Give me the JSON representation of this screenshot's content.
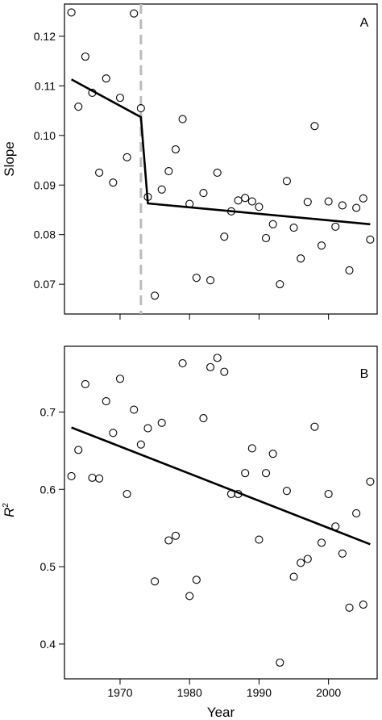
{
  "chart_data": [
    {
      "type": "scatter",
      "panel_label": "A",
      "ylabel": "Slope",
      "xlabel": "",
      "xlim": [
        1962,
        2007
      ],
      "ylim": [
        0.064,
        0.1265
      ],
      "xticks": [
        1970,
        1980,
        1990,
        2000
      ],
      "yticks": [
        0.07,
        0.08,
        0.09,
        0.1,
        0.11,
        0.12
      ],
      "ytick_labels": [
        "0.07",
        "0.08",
        "0.09",
        "0.10",
        "0.11",
        "0.12"
      ],
      "xtick_labels": [
        "",
        "",
        "",
        ""
      ],
      "series": [
        {
          "type": "scatter",
          "x": [
            1963,
            1964,
            1965,
            1966,
            1967,
            1968,
            1969,
            1970,
            1971,
            1972,
            1973,
            1974,
            1975,
            1976,
            1977,
            1978,
            1979,
            1980,
            1981,
            1982,
            1983,
            1984,
            1985,
            1986,
            1987,
            1988,
            1989,
            1990,
            1991,
            1992,
            1993,
            1994,
            1995,
            1996,
            1997,
            1998,
            1999,
            2000,
            2001,
            2002,
            2003,
            2004,
            2005,
            2006
          ],
          "y": [
            0.1248,
            0.1058,
            0.1159,
            0.1086,
            0.0925,
            0.1115,
            0.0905,
            0.1076,
            0.0956,
            0.1246,
            0.1055,
            0.0876,
            0.0677,
            0.0891,
            0.0928,
            0.0972,
            0.1033,
            0.0862,
            0.0713,
            0.0884,
            0.0708,
            0.0925,
            0.0796,
            0.0847,
            0.0869,
            0.0874,
            0.0867,
            0.0856,
            0.0793,
            0.0821,
            0.07,
            0.0908,
            0.0814,
            0.0752,
            0.0866,
            0.1019,
            0.0778,
            0.0867,
            0.0816,
            0.0859,
            0.0728,
            0.0854,
            0.0873,
            0.079
          ]
        },
        {
          "type": "line",
          "x": [
            1963,
            1973,
            1974,
            2006
          ],
          "y": [
            0.1113,
            0.1037,
            0.0863,
            0.0821
          ]
        }
      ],
      "vline": {
        "x": 1973,
        "color": "#bbbbbb",
        "dashed": true
      }
    },
    {
      "type": "scatter",
      "panel_label": "B",
      "ylabel": "R",
      "ylabel_sup": "2",
      "xlabel": "Year",
      "xlim": [
        1962,
        2007
      ],
      "ylim": [
        0.355,
        0.785
      ],
      "xticks": [
        1970,
        1980,
        1990,
        2000
      ],
      "xtick_labels": [
        "1970",
        "1980",
        "1990",
        "2000"
      ],
      "yticks": [
        0.4,
        0.5,
        0.6,
        0.7
      ],
      "ytick_labels": [
        "0.4",
        "0.5",
        "0.6",
        "0.7"
      ],
      "series": [
        {
          "type": "scatter",
          "x": [
            1963,
            1964,
            1965,
            1966,
            1967,
            1968,
            1969,
            1970,
            1971,
            1972,
            1973,
            1974,
            1975,
            1976,
            1977,
            1978,
            1979,
            1980,
            1981,
            1982,
            1983,
            1984,
            1985,
            1986,
            1987,
            1988,
            1989,
            1990,
            1991,
            1992,
            1993,
            1994,
            1995,
            1996,
            1997,
            1998,
            1999,
            2000,
            2001,
            2002,
            2003,
            2004,
            2005,
            2006
          ],
          "y": [
            0.617,
            0.651,
            0.736,
            0.615,
            0.614,
            0.714,
            0.673,
            0.743,
            0.594,
            0.703,
            0.658,
            0.679,
            0.481,
            0.686,
            0.534,
            0.54,
            0.763,
            0.462,
            0.483,
            0.692,
            0.758,
            0.77,
            0.752,
            0.594,
            0.594,
            0.621,
            0.653,
            0.535,
            0.621,
            0.646,
            0.376,
            0.598,
            0.487,
            0.505,
            0.51,
            0.681,
            0.531,
            0.594,
            0.552,
            0.517,
            0.447,
            0.569,
            0.451,
            0.61
          ]
        },
        {
          "type": "line",
          "x": [
            1963,
            2006
          ],
          "y": [
            0.68,
            0.529
          ]
        }
      ]
    }
  ]
}
